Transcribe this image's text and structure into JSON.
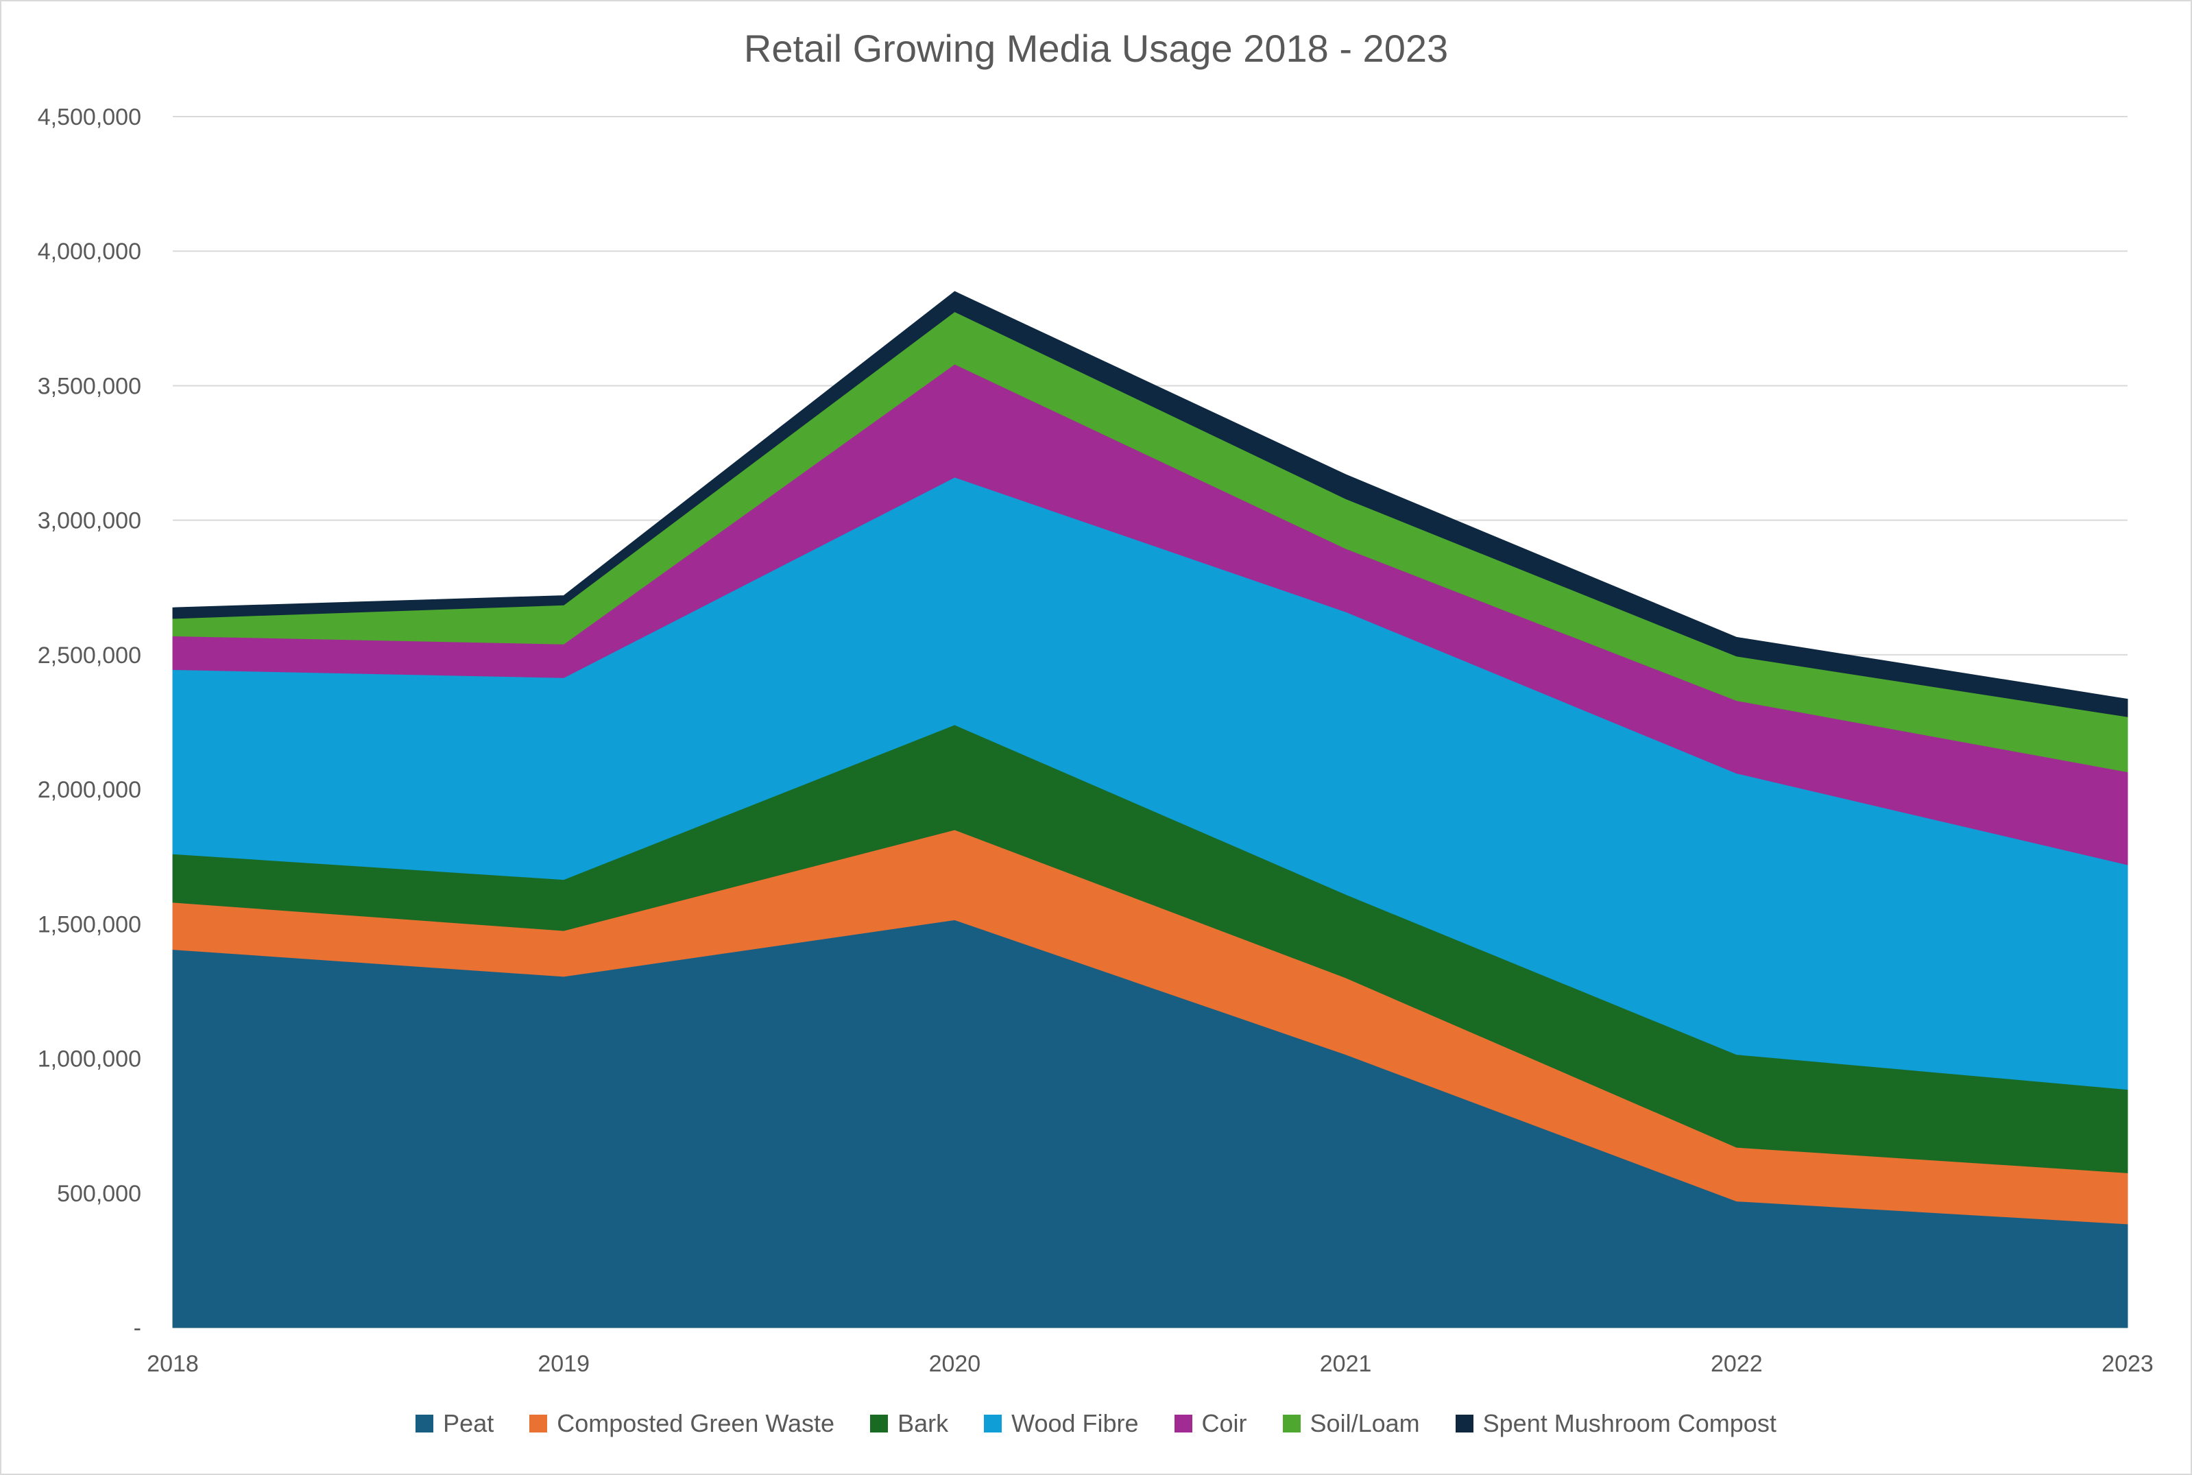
{
  "chart_data": {
    "type": "area",
    "stacked": true,
    "title": "Retail  Growing Media Usage 2018 - 2023",
    "xlabel": "",
    "ylabel": "",
    "categories": [
      "2018",
      "2019",
      "2020",
      "2021",
      "2022",
      "2023"
    ],
    "ylim": [
      0,
      4500000
    ],
    "yticks": [
      0,
      500000,
      1000000,
      1500000,
      2000000,
      2500000,
      3000000,
      3500000,
      4000000,
      4500000
    ],
    "ytick_labels": [
      "-",
      "500,000",
      "1,000,000",
      "1,500,000",
      "2,000,000",
      "2,500,000",
      "3,000,000",
      "3,500,000",
      "4,000,000",
      "4,500,000"
    ],
    "grid": true,
    "legend_position": "bottom",
    "series": [
      {
        "name": "Peat",
        "color": "#185e82",
        "values": [
          1405000,
          1305000,
          1515000,
          1015000,
          470000,
          385000
        ]
      },
      {
        "name": "Composted Green Waste",
        "color": "#e97132",
        "values": [
          175000,
          170000,
          335000,
          285000,
          200000,
          190000
        ]
      },
      {
        "name": "Bark",
        "color": "#196b24",
        "values": [
          180000,
          190000,
          390000,
          310000,
          345000,
          310000
        ]
      },
      {
        "name": "Wood Fibre",
        "color": "#0f9ed5",
        "values": [
          685000,
          750000,
          920000,
          1050000,
          1045000,
          835000
        ]
      },
      {
        "name": "Coir",
        "color": "#a02b93",
        "values": [
          125000,
          125000,
          420000,
          235000,
          270000,
          345000
        ]
      },
      {
        "name": "Soil/Loam",
        "color": "#4ea72e",
        "values": [
          65000,
          145000,
          195000,
          185000,
          165000,
          205000
        ]
      },
      {
        "name": "Spent Mushroom Compost",
        "color": "#0e2841",
        "values": [
          40000,
          35000,
          75000,
          90000,
          70000,
          65000
        ]
      }
    ]
  }
}
